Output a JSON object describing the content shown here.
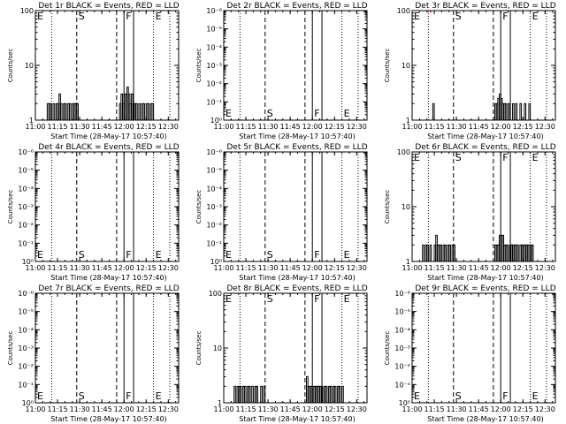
{
  "shared": {
    "xlabel": "Start Time (28-May-17 10:57:40)",
    "ylabel": "Counts/sec",
    "xticks": [
      "11:00",
      "11:15",
      "11:30",
      "11:45",
      "12:00",
      "12:15",
      "12:30"
    ],
    "xtick_minutes": [
      0,
      15,
      30,
      45,
      60,
      75,
      90
    ],
    "xlim_minutes_after_1100": [
      0,
      97
    ],
    "markers": [
      {
        "t": 0,
        "letter": "E",
        "style": "none"
      },
      {
        "t": 11,
        "letter": "",
        "style": "dotted"
      },
      {
        "t": 28,
        "letter": "S",
        "style": "dashed"
      },
      {
        "t": 55,
        "letter": "",
        "style": "dashed"
      },
      {
        "t": 60,
        "letter": "F",
        "style": "solid"
      },
      {
        "t": 66.5,
        "letter": "",
        "style": "solid"
      },
      {
        "t": 80,
        "letter": "E",
        "style": "dotted"
      },
      {
        "t": 91,
        "letter": "",
        "style": "dotted"
      }
    ],
    "colors": {
      "events": "#000000",
      "lld": "#ff0000"
    }
  },
  "chart_data": [
    {
      "type": "line",
      "title": "Det 1r BLACK = Events, RED = LLD",
      "yscale": "log",
      "ylim": [
        1,
        100
      ],
      "yticks": [
        "1",
        "10",
        "100"
      ],
      "letters_at": "top",
      "series": [
        {
          "name": "Events",
          "color": "#000000",
          "points": [
            [
              8,
              2
            ],
            [
              9,
              2
            ],
            [
              10,
              2
            ],
            [
              11,
              1
            ],
            [
              12,
              2
            ],
            [
              13,
              1
            ],
            [
              14,
              2
            ],
            [
              15,
              2
            ],
            [
              16,
              3
            ],
            [
              17,
              2
            ],
            [
              18,
              1
            ],
            [
              19,
              2
            ],
            [
              20,
              2
            ],
            [
              21,
              1
            ],
            [
              22,
              2
            ],
            [
              23,
              2
            ],
            [
              24,
              1
            ],
            [
              25,
              2
            ],
            [
              26,
              2
            ],
            [
              27,
              2
            ],
            [
              28,
              2
            ],
            [
              57,
              2
            ],
            [
              58,
              3
            ],
            [
              59,
              2
            ],
            [
              60,
              3
            ],
            [
              61,
              3
            ],
            [
              62,
              4
            ],
            [
              63,
              3
            ],
            [
              64,
              2
            ],
            [
              65,
              3
            ],
            [
              66,
              2
            ],
            [
              67,
              2
            ],
            [
              68,
              2
            ],
            [
              69,
              1
            ],
            [
              70,
              2
            ],
            [
              71,
              1
            ],
            [
              72,
              2
            ],
            [
              73,
              2
            ],
            [
              74,
              1
            ],
            [
              75,
              2
            ],
            [
              76,
              2
            ],
            [
              77,
              1
            ],
            [
              78,
              2
            ],
            [
              79,
              2
            ],
            [
              80,
              1
            ],
            [
              81,
              1
            ]
          ]
        }
      ]
    },
    {
      "type": "line",
      "title": "Det 2r BLACK = Events, RED = LLD",
      "yscale": "log",
      "ylim": [
        1,
        1000000
      ],
      "yticks": [
        "10⁰",
        "10⁻¹",
        "10⁻²",
        "10⁻³",
        "10⁻⁴",
        "10⁻⁵",
        "10⁻⁶"
      ],
      "letters_at": "bottom",
      "series": []
    },
    {
      "type": "line",
      "title": "Det 3r BLACK = Events, RED = LLD",
      "yscale": "log",
      "ylim": [
        1,
        100
      ],
      "yticks": [
        "1",
        "10",
        "100"
      ],
      "letters_at": "top",
      "series": [
        {
          "name": "Events",
          "color": "#000000",
          "points": [
            [
              14,
              2
            ],
            [
              15,
              1
            ],
            [
              56,
              2
            ],
            [
              57,
              2
            ],
            [
              58,
              2.5
            ],
            [
              59,
              3
            ],
            [
              60,
              2.5
            ],
            [
              61,
              2
            ],
            [
              62,
              2
            ],
            [
              63,
              2
            ],
            [
              64,
              1
            ],
            [
              65,
              2
            ],
            [
              66,
              1
            ],
            [
              68,
              2
            ],
            [
              69,
              1
            ],
            [
              70,
              2
            ],
            [
              71,
              1
            ],
            [
              73,
              2
            ],
            [
              74,
              1
            ],
            [
              76,
              2
            ],
            [
              77,
              1
            ],
            [
              79,
              2
            ],
            [
              80,
              1
            ]
          ]
        },
        {
          "name": "LLD",
          "color": "#ff0000",
          "points": [
            [
              10,
              100
            ],
            [
              12,
              100
            ]
          ]
        }
      ]
    },
    {
      "type": "line",
      "title": "Det 4r BLACK = Events, RED = LLD",
      "yscale": "log",
      "ylim": [
        1,
        1000000
      ],
      "yticks": [
        "10⁰",
        "10⁻¹",
        "10⁻²",
        "10⁻³",
        "10⁻⁴",
        "10⁻⁵",
        "10⁻⁶"
      ],
      "letters_at": "bottom",
      "series": []
    },
    {
      "type": "line",
      "title": "Det 5r BLACK = Events, RED = LLD",
      "yscale": "log",
      "ylim": [
        1,
        1000000
      ],
      "yticks": [
        "10⁰",
        "10⁻¹",
        "10⁻²",
        "10⁻³",
        "10⁻⁴",
        "10⁻⁵",
        "10⁻⁶"
      ],
      "letters_at": "bottom",
      "series": []
    },
    {
      "type": "line",
      "title": "Det 6r BLACK = Events, RED = LLD",
      "yscale": "log",
      "ylim": [
        1,
        100
      ],
      "yticks": [
        "1",
        "10",
        "100"
      ],
      "letters_at": "top",
      "series": [
        {
          "name": "Events",
          "color": "#000000",
          "points": [
            [
              7,
              2
            ],
            [
              8,
              1
            ],
            [
              9,
              2
            ],
            [
              10,
              2
            ],
            [
              11,
              1
            ],
            [
              12,
              2
            ],
            [
              13,
              1
            ],
            [
              14,
              1
            ],
            [
              15,
              2
            ],
            [
              16,
              3
            ],
            [
              17,
              2
            ],
            [
              18,
              2
            ],
            [
              19,
              2
            ],
            [
              20,
              1
            ],
            [
              21,
              2
            ],
            [
              22,
              2
            ],
            [
              23,
              1
            ],
            [
              24,
              2
            ],
            [
              25,
              2
            ],
            [
              26,
              1
            ],
            [
              27,
              2
            ],
            [
              28,
              2
            ],
            [
              55,
              1
            ],
            [
              56,
              2
            ],
            [
              57,
              2
            ],
            [
              58,
              2
            ],
            [
              59,
              3
            ],
            [
              60,
              3
            ],
            [
              61,
              3
            ],
            [
              62,
              2
            ],
            [
              63,
              2
            ],
            [
              64,
              2
            ],
            [
              65,
              1
            ],
            [
              66,
              2
            ],
            [
              67,
              2
            ],
            [
              68,
              2
            ],
            [
              69,
              2
            ],
            [
              70,
              2
            ],
            [
              71,
              2
            ],
            [
              72,
              1
            ],
            [
              73,
              2
            ],
            [
              74,
              2
            ],
            [
              75,
              2
            ],
            [
              76,
              2
            ],
            [
              77,
              2
            ],
            [
              78,
              2
            ],
            [
              79,
              2
            ],
            [
              80,
              2
            ],
            [
              81,
              2
            ]
          ]
        }
      ]
    },
    {
      "type": "line",
      "title": "Det 7r BLACK = Events, RED = LLD",
      "yscale": "log",
      "ylim": [
        1,
        1000000
      ],
      "yticks": [
        "10⁰",
        "10⁻¹",
        "10⁻²",
        "10⁻³",
        "10⁻⁴",
        "10⁻⁵",
        "10⁻⁶"
      ],
      "letters_at": "bottom",
      "series": []
    },
    {
      "type": "line",
      "title": "Det 8r BLACK = Events, RED = LLD",
      "yscale": "log",
      "ylim": [
        1,
        100
      ],
      "yticks": [
        "1",
        "10",
        "100"
      ],
      "letters_at": "top",
      "series": [
        {
          "name": "Events",
          "color": "#000000",
          "points": [
            [
              7,
              2
            ],
            [
              8,
              1
            ],
            [
              9,
              2
            ],
            [
              10,
              2
            ],
            [
              11,
              2
            ],
            [
              12,
              1
            ],
            [
              13,
              2
            ],
            [
              14,
              2
            ],
            [
              15,
              1
            ],
            [
              16,
              2
            ],
            [
              17,
              2
            ],
            [
              18,
              1
            ],
            [
              19,
              2
            ],
            [
              20,
              1
            ],
            [
              21,
              2
            ],
            [
              22,
              2
            ],
            [
              23,
              1
            ],
            [
              24,
              1
            ],
            [
              25,
              2
            ],
            [
              26,
              1
            ],
            [
              27,
              2
            ],
            [
              28,
              1
            ],
            [
              56,
              3
            ],
            [
              57,
              2
            ],
            [
              58,
              2
            ],
            [
              59,
              2
            ],
            [
              60,
              2
            ],
            [
              61,
              2
            ],
            [
              62,
              2
            ],
            [
              63,
              2
            ],
            [
              64,
              2
            ],
            [
              65,
              2
            ],
            [
              66,
              2
            ],
            [
              67,
              1
            ],
            [
              68,
              2
            ],
            [
              69,
              2
            ],
            [
              70,
              1
            ],
            [
              71,
              2
            ],
            [
              72,
              2
            ],
            [
              73,
              1
            ],
            [
              74,
              2
            ],
            [
              75,
              2
            ],
            [
              76,
              1
            ],
            [
              77,
              2
            ],
            [
              78,
              2
            ],
            [
              79,
              1
            ],
            [
              80,
              2
            ]
          ]
        }
      ]
    },
    {
      "type": "line",
      "title": "Det 9r BLACK = Events, RED = LLD",
      "yscale": "log",
      "ylim": [
        1,
        1000000
      ],
      "yticks": [
        "10⁰",
        "10⁻¹",
        "10⁻²",
        "10⁻³",
        "10⁻⁴",
        "10⁻⁵",
        "10⁻⁶"
      ],
      "letters_at": "bottom",
      "series": []
    }
  ]
}
